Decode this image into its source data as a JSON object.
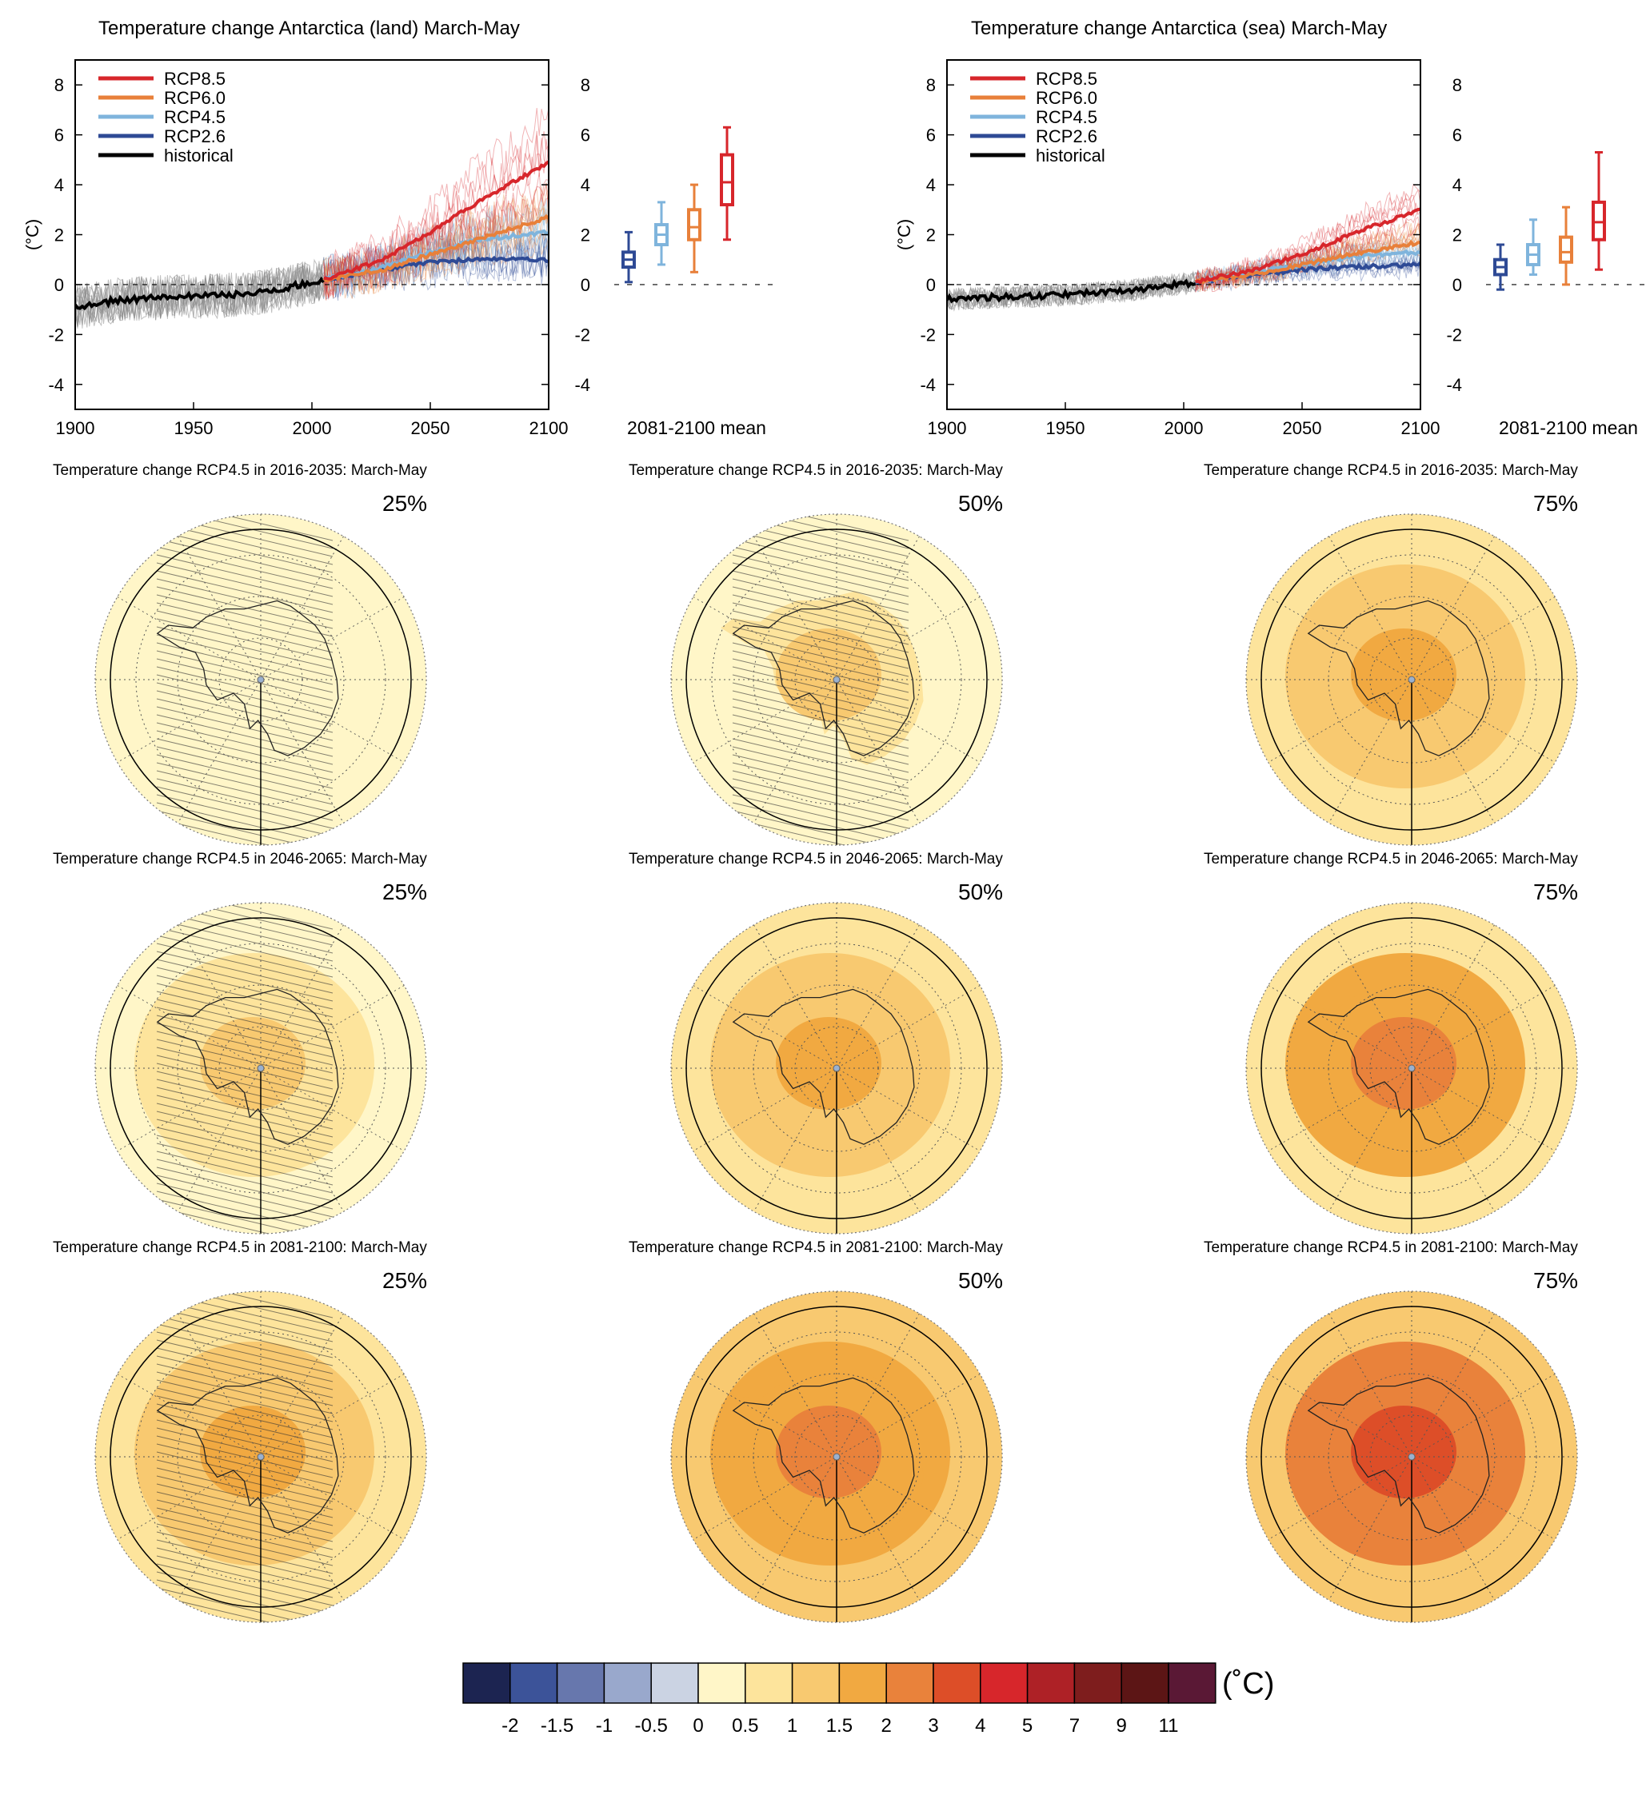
{
  "timeseries": [
    {
      "id": "land",
      "title": "Temperature change Antarctica (land) March-May",
      "ylabel": "(°C)",
      "box_label": "2081-2100 mean",
      "x_ticks": [
        "1900",
        "1950",
        "2000",
        "2050",
        "2100"
      ],
      "y_ticks": [
        "8",
        "6",
        "4",
        "2",
        "0",
        "-2",
        "-4"
      ],
      "legend": [
        {
          "label": "RCP8.5",
          "color": "#d7262b"
        },
        {
          "label": "RCP6.0",
          "color": "#e8803a"
        },
        {
          "label": "RCP4.5",
          "color": "#7fb4dc"
        },
        {
          "label": "RCP2.6",
          "color": "#2e4a95"
        },
        {
          "label": "historical",
          "color": "#000000"
        }
      ],
      "chart_data": {
        "type": "line",
        "xlim": [
          1900,
          2100
        ],
        "ylim": [
          -5,
          9
        ],
        "series": [
          {
            "name": "historical",
            "color": "#000000",
            "x": [
              1900,
              1920,
              1940,
              1960,
              1980,
              2005
            ],
            "y": [
              -0.9,
              -0.6,
              -0.5,
              -0.45,
              -0.3,
              0.2
            ]
          },
          {
            "name": "RCP2.6",
            "color": "#2e4a95",
            "x": [
              2005,
              2030,
              2050,
              2070,
              2100
            ],
            "y": [
              0.2,
              0.6,
              0.9,
              1.0,
              1.0
            ]
          },
          {
            "name": "RCP4.5",
            "color": "#7fb4dc",
            "x": [
              2005,
              2030,
              2050,
              2070,
              2100
            ],
            "y": [
              0.2,
              0.7,
              1.3,
              1.8,
              2.1
            ]
          },
          {
            "name": "RCP6.0",
            "color": "#e8803a",
            "x": [
              2005,
              2030,
              2050,
              2070,
              2100
            ],
            "y": [
              0.2,
              0.6,
              1.2,
              1.8,
              2.7
            ]
          },
          {
            "name": "RCP8.5",
            "color": "#d7262b",
            "x": [
              2005,
              2030,
              2050,
              2070,
              2100
            ],
            "y": [
              0.2,
              1.0,
              2.1,
              3.3,
              4.9
            ]
          }
        ],
        "boxes": [
          {
            "name": "RCP2.6",
            "color": "#2e4a95",
            "min": 0.1,
            "q1": 0.7,
            "median": 1.0,
            "q3": 1.3,
            "max": 2.1
          },
          {
            "name": "RCP4.5",
            "color": "#7fb4dc",
            "min": 0.8,
            "q1": 1.6,
            "median": 2.0,
            "q3": 2.4,
            "max": 3.3
          },
          {
            "name": "RCP6.0",
            "color": "#e8803a",
            "min": 0.5,
            "q1": 1.8,
            "median": 2.3,
            "q3": 3.0,
            "max": 4.0
          },
          {
            "name": "RCP8.5",
            "color": "#d7262b",
            "min": 1.8,
            "q1": 3.2,
            "median": 4.1,
            "q3": 5.2,
            "max": 6.3
          }
        ]
      }
    },
    {
      "id": "sea",
      "title": "Temperature change Antarctica (sea) March-May",
      "ylabel": "(°C)",
      "box_label": "2081-2100 mean",
      "x_ticks": [
        "1900",
        "1950",
        "2000",
        "2050",
        "2100"
      ],
      "y_ticks": [
        "8",
        "6",
        "4",
        "2",
        "0",
        "-2",
        "-4"
      ],
      "legend": [
        {
          "label": "RCP8.5",
          "color": "#d7262b"
        },
        {
          "label": "RCP6.0",
          "color": "#e8803a"
        },
        {
          "label": "RCP4.5",
          "color": "#7fb4dc"
        },
        {
          "label": "RCP2.6",
          "color": "#2e4a95"
        },
        {
          "label": "historical",
          "color": "#000000"
        }
      ],
      "chart_data": {
        "type": "line",
        "xlim": [
          1900,
          2100
        ],
        "ylim": [
          -5,
          9
        ],
        "series": [
          {
            "name": "historical",
            "color": "#000000",
            "x": [
              1900,
              1920,
              1940,
              1960,
              1980,
              2005
            ],
            "y": [
              -0.6,
              -0.5,
              -0.45,
              -0.35,
              -0.2,
              0.1
            ]
          },
          {
            "name": "RCP2.6",
            "color": "#2e4a95",
            "x": [
              2005,
              2030,
              2050,
              2070,
              2100
            ],
            "y": [
              0.1,
              0.4,
              0.6,
              0.7,
              0.8
            ]
          },
          {
            "name": "RCP4.5",
            "color": "#7fb4dc",
            "x": [
              2005,
              2030,
              2050,
              2070,
              2100
            ],
            "y": [
              0.1,
              0.5,
              0.8,
              1.1,
              1.3
            ]
          },
          {
            "name": "RCP6.0",
            "color": "#e8803a",
            "x": [
              2005,
              2030,
              2050,
              2070,
              2100
            ],
            "y": [
              0.1,
              0.4,
              0.8,
              1.2,
              1.7
            ]
          },
          {
            "name": "RCP8.5",
            "color": "#d7262b",
            "x": [
              2005,
              2030,
              2050,
              2070,
              2100
            ],
            "y": [
              0.1,
              0.6,
              1.2,
              2.0,
              3.0
            ]
          }
        ],
        "boxes": [
          {
            "name": "RCP2.6",
            "color": "#2e4a95",
            "min": -0.2,
            "q1": 0.4,
            "median": 0.7,
            "q3": 1.0,
            "max": 1.6
          },
          {
            "name": "RCP4.5",
            "color": "#7fb4dc",
            "min": 0.4,
            "q1": 0.8,
            "median": 1.2,
            "q3": 1.6,
            "max": 2.6
          },
          {
            "name": "RCP6.0",
            "color": "#e8803a",
            "min": 0.0,
            "q1": 0.9,
            "median": 1.3,
            "q3": 1.9,
            "max": 3.1
          },
          {
            "name": "RCP8.5",
            "color": "#d7262b",
            "min": 0.6,
            "q1": 1.8,
            "median": 2.5,
            "q3": 3.3,
            "max": 5.3
          }
        ]
      }
    }
  ],
  "maps": [
    {
      "title": "Temperature change RCP4.5 in 2016-2035: March-May",
      "percentile": "25%",
      "ocean": 0.3,
      "land": 0.3,
      "core": 0.3,
      "ring": 0.3,
      "hatched": true
    },
    {
      "title": "Temperature change RCP4.5 in 2016-2035: March-May",
      "percentile": "50%",
      "ocean": 0.3,
      "land": 0.8,
      "core": 1.2,
      "ring": 0.3,
      "hatched": true
    },
    {
      "title": "Temperature change RCP4.5 in 2016-2035: March-May",
      "percentile": "75%",
      "ocean": 0.8,
      "land": 1.2,
      "core": 1.7,
      "ring": 1.2,
      "hatched": false
    },
    {
      "title": "Temperature change RCP4.5 in 2046-2065: March-May",
      "percentile": "25%",
      "ocean": 0.3,
      "land": 0.8,
      "core": 1.2,
      "ring": 0.8,
      "hatched": true
    },
    {
      "title": "Temperature change RCP4.5 in 2046-2065: March-May",
      "percentile": "50%",
      "ocean": 0.8,
      "land": 1.2,
      "core": 1.7,
      "ring": 1.2,
      "hatched": false
    },
    {
      "title": "Temperature change RCP4.5 in 2046-2065: March-May",
      "percentile": "75%",
      "ocean": 0.8,
      "land": 1.7,
      "core": 2.5,
      "ring": 1.7,
      "hatched": false
    },
    {
      "title": "Temperature change RCP4.5 in 2081-2100: March-May",
      "percentile": "25%",
      "ocean": 0.8,
      "land": 1.2,
      "core": 1.7,
      "ring": 1.2,
      "hatched": true
    },
    {
      "title": "Temperature change RCP4.5 in 2081-2100: March-May",
      "percentile": "50%",
      "ocean": 1.2,
      "land": 1.7,
      "core": 2.5,
      "ring": 1.7,
      "hatched": false
    },
    {
      "title": "Temperature change RCP4.5 in 2081-2100: March-May",
      "percentile": "75%",
      "ocean": 1.2,
      "land": 2.5,
      "core": 3.5,
      "ring": 2.5,
      "hatched": false
    }
  ],
  "colorbar": {
    "unit": "(˚C)",
    "colors": [
      "#1c2451",
      "#3c5399",
      "#6777ad",
      "#99a8cc",
      "#cbd3e3",
      "#fff6c8",
      "#fde49c",
      "#f8c970",
      "#f1a941",
      "#e9823b",
      "#dd4e28",
      "#d7262b",
      "#ae2126",
      "#7e1d1d",
      "#5c1515",
      "#5a1835"
    ],
    "tick_labels": [
      "-2",
      "-1.5",
      "-1",
      "-0.5",
      "0",
      "0.5",
      "1",
      "1.5",
      "2",
      "3",
      "4",
      "5",
      "7",
      "9",
      "11"
    ]
  }
}
